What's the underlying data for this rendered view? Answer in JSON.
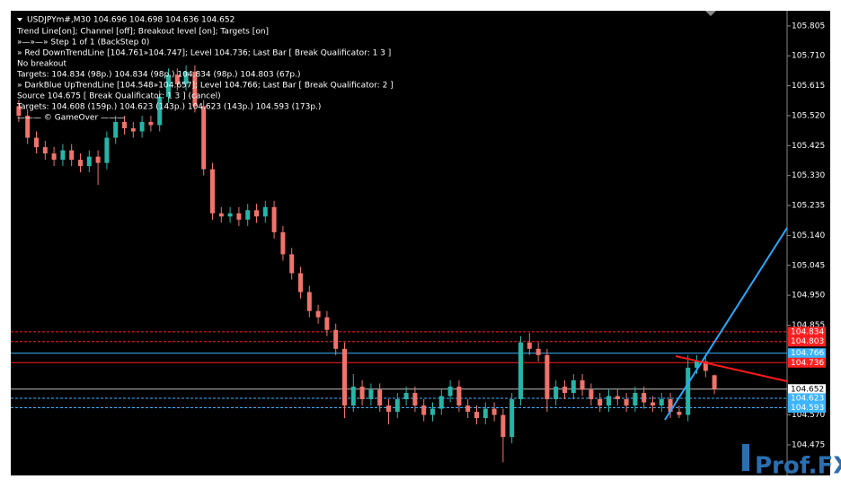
{
  "chart_data": {
    "type": "candlestick",
    "title": "USDJPYm#,M30  104.696 104.698 104.636 104.652",
    "info_lines": [
      "Trend Line[on]; Channel [off]; Breakout level [on]; Targets [on]",
      "»—»—» Step 1 of 1 (BackStep 0)",
      "» Red DownTrendLine [104.761»104.747]; Level 104.736; Last Bar [ Break Qualificator: 1 3 ]",
      "No breakout",
      "Targets: 104.834 (98p.) 104.834 (98p.) 104.834 (98p.) 104.803 (67p.)",
      "» DarkBlue UpTrendLine [104.548»104.657]; Level 104.766; Last Bar [ Break Qualificator: 2 ]",
      "Source 104.675 [ Break Qualificator: 1 3 ] (cancel)",
      "Targets: 104.608 (159p.) 104.623 (143p.) 104.623 (143p.) 104.593 (173p.)",
      "——— © GameOver ———"
    ],
    "watermark": "Prof.FX",
    "up_color": "#26b5a8",
    "down_color": "#f0736c",
    "ylim": [
      104.378,
      105.853
    ],
    "yticks": [
      105.805,
      {
        "value": 105.71,
        "label": "105.710"
      },
      105.615,
      {
        "value": 105.52,
        "label": "105.520"
      },
      105.425,
      {
        "value": 105.33,
        "label": "105.330"
      },
      105.235,
      {
        "value": 105.14,
        "label": "105.140"
      },
      105.045,
      {
        "value": 104.95,
        "label": "104.950"
      },
      104.855,
      {
        "value": 104.57,
        "label": "104.570"
      },
      104.475
    ],
    "levels": [
      {
        "value": 104.834,
        "color": "#ff2020",
        "dashed": true
      },
      {
        "value": 104.803,
        "color": "#ff2020",
        "dashed": true
      },
      {
        "value": 104.766,
        "color": "#3cb4ff",
        "dashed": false
      },
      {
        "value": 104.736,
        "color": "#ff2020",
        "dashed": false
      },
      {
        "value": 104.652,
        "color": "#c0c0c0",
        "dashed": false
      },
      {
        "value": 104.623,
        "color": "#3cb4ff",
        "dashed": true
      },
      {
        "value": 104.593,
        "color": "#3cb4ff",
        "dashed": true
      }
    ],
    "open": [
      105.55,
      105.52,
      105.45,
      105.42,
      105.4,
      105.38,
      105.41,
      105.38,
      105.36,
      105.39,
      105.37,
      105.45,
      105.5,
      105.48,
      105.47,
      105.5,
      105.49,
      105.58,
      105.65,
      105.62,
      105.66,
      105.55,
      105.35,
      105.21,
      105.2,
      105.21,
      105.19,
      105.22,
      105.2,
      105.23,
      105.15,
      105.08,
      105.02,
      104.96,
      104.9,
      104.88,
      104.84,
      104.78,
      104.6,
      104.66,
      104.62,
      104.65,
      104.6,
      104.58,
      104.62,
      104.64,
      104.6,
      104.57,
      104.59,
      104.63,
      104.66,
      104.6,
      104.58,
      104.56,
      104.59,
      104.57,
      104.5,
      104.62,
      104.8,
      104.78,
      104.76,
      104.62,
      104.66,
      104.64,
      104.68,
      104.65,
      104.62,
      104.6,
      104.63,
      104.62,
      104.6,
      104.64,
      104.61,
      104.6,
      104.62,
      104.58,
      104.57,
      104.72,
      104.74,
      104.696
    ],
    "high": [
      105.57,
      105.54,
      105.47,
      105.44,
      105.42,
      105.43,
      105.43,
      105.4,
      105.41,
      105.41,
      105.47,
      105.52,
      105.52,
      105.5,
      105.52,
      105.52,
      105.6,
      105.67,
      105.67,
      105.68,
      105.68,
      105.57,
      105.37,
      105.23,
      105.23,
      105.23,
      105.24,
      105.24,
      105.25,
      105.25,
      105.17,
      105.1,
      105.04,
      104.98,
      104.92,
      104.9,
      104.86,
      104.8,
      104.7,
      104.68,
      104.67,
      104.67,
      104.62,
      104.64,
      104.66,
      104.66,
      104.62,
      104.61,
      104.65,
      104.68,
      104.68,
      104.62,
      104.6,
      104.61,
      104.61,
      104.59,
      104.64,
      104.82,
      104.83,
      104.8,
      104.78,
      104.68,
      104.68,
      104.7,
      104.7,
      104.67,
      104.64,
      104.65,
      104.65,
      104.64,
      104.66,
      104.66,
      104.63,
      104.64,
      104.64,
      104.6,
      104.76,
      104.76,
      104.76,
      104.698
    ],
    "low": [
      105.5,
      105.43,
      105.4,
      105.38,
      105.36,
      105.36,
      105.36,
      105.34,
      105.34,
      105.3,
      105.35,
      105.43,
      105.46,
      105.45,
      105.45,
      105.47,
      105.47,
      105.56,
      105.6,
      105.6,
      105.53,
      105.33,
      105.19,
      105.18,
      105.18,
      105.17,
      105.17,
      105.18,
      105.18,
      105.13,
      105.06,
      105.0,
      104.94,
      104.88,
      104.86,
      104.82,
      104.76,
      104.56,
      104.58,
      104.6,
      104.6,
      104.58,
      104.54,
      104.56,
      104.6,
      104.58,
      104.55,
      104.55,
      104.57,
      104.61,
      104.58,
      104.56,
      104.54,
      104.54,
      104.55,
      104.42,
      104.48,
      104.6,
      104.76,
      104.74,
      104.58,
      104.6,
      104.62,
      104.62,
      104.63,
      104.6,
      104.58,
      104.58,
      104.6,
      104.58,
      104.58,
      104.59,
      104.58,
      104.58,
      104.56,
      104.56,
      104.55,
      104.7,
      104.69,
      104.636
    ],
    "close": [
      105.52,
      105.45,
      105.42,
      105.4,
      105.38,
      105.41,
      105.38,
      105.36,
      105.39,
      105.37,
      105.45,
      105.5,
      105.48,
      105.47,
      105.5,
      105.49,
      105.58,
      105.65,
      105.62,
      105.66,
      105.55,
      105.35,
      105.21,
      105.2,
      105.21,
      105.19,
      105.22,
      105.2,
      105.23,
      105.15,
      105.08,
      105.02,
      104.96,
      104.9,
      104.88,
      104.84,
      104.78,
      104.6,
      104.66,
      104.62,
      104.65,
      104.6,
      104.58,
      104.62,
      104.64,
      104.6,
      104.57,
      104.59,
      104.63,
      104.66,
      104.6,
      104.58,
      104.56,
      104.59,
      104.57,
      104.5,
      104.62,
      104.8,
      104.78,
      104.76,
      104.62,
      104.66,
      104.64,
      104.68,
      104.65,
      104.62,
      104.6,
      104.63,
      104.62,
      104.6,
      104.64,
      104.61,
      104.6,
      104.62,
      104.58,
      104.57,
      104.72,
      104.74,
      104.71,
      104.652
    ]
  }
}
